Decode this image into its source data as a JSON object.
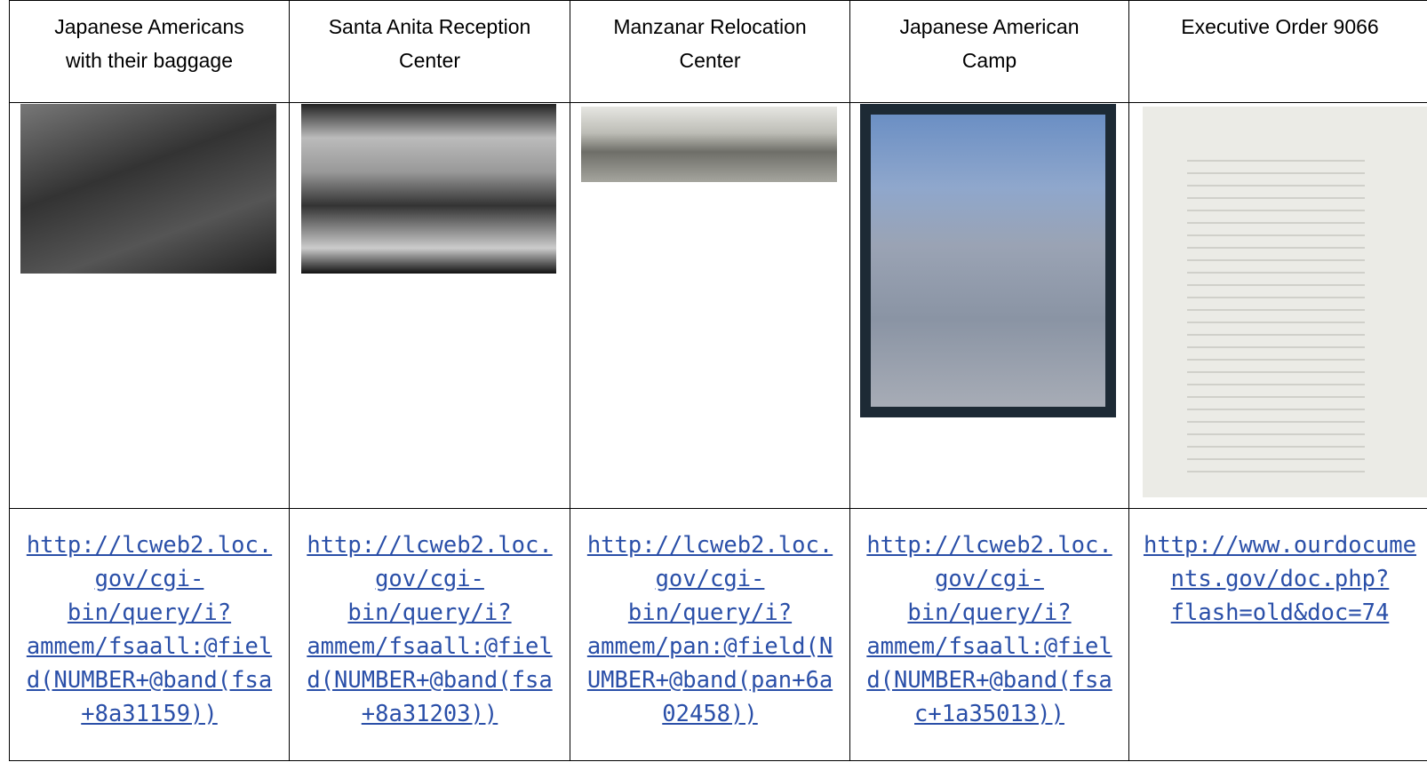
{
  "table": {
    "columns": [
      {
        "title": "Japanese Americans with their baggage",
        "link": "http://lcweb2.loc.gov/cgi-bin/query/i?ammem/fsaall:@field(NUMBER+@band(fsa+8a31159))"
      },
      {
        "title": "Santa Anita Reception Center",
        "link": "http://lcweb2.loc.gov/cgi-bin/query/i?ammem/fsaall:@field(NUMBER+@band(fsa+8a31203))"
      },
      {
        "title": "Manzanar Relocation Center",
        "link": "http://lcweb2.loc.gov/cgi-bin/query/i?ammem/pan:@field(NUMBER+@band(pan+6a02458))"
      },
      {
        "title": "Japanese American Camp",
        "link": "http://lcweb2.loc.gov/cgi-bin/query/i?ammem/fsaall:@field(NUMBER+@band(fsac+1a35013))"
      },
      {
        "title": "Executive Order 9066",
        "link": "http://www.ourdocuments.gov/doc.php?flash=old&doc=74"
      }
    ]
  }
}
